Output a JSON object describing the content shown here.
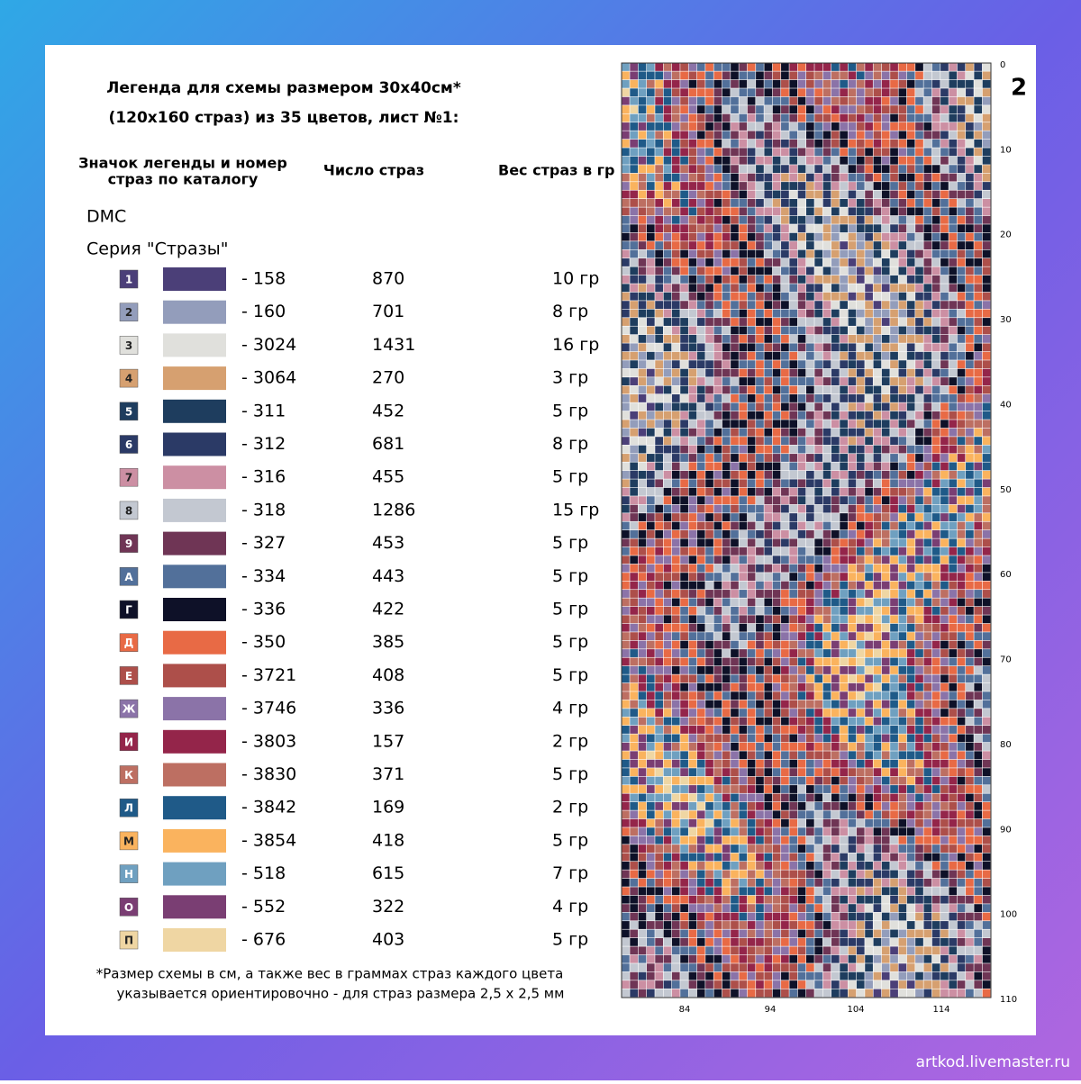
{
  "header": {
    "title": [
      "Легенда для схемы размером 30х40см*",
      "(120х160 страз) из 35 цветов, лист №1:"
    ],
    "page_number": "2"
  },
  "columns": [
    [
      "Значок легенды и номер",
      "страз по каталогу"
    ],
    "Число страз",
    "Вес страз в гр"
  ],
  "brand": "DMC",
  "series": "Серия \"Стразы\"",
  "rows": [
    {
      "symbol": "1",
      "color": "#4b3f78",
      "code": "- 158",
      "count": "870",
      "weight": "10 гр"
    },
    {
      "symbol": "2",
      "color": "#939dbb",
      "code": "- 160",
      "count": "701",
      "weight": "8 гр"
    },
    {
      "symbol": "3",
      "color": "#e0e0dc",
      "code": "- 3024",
      "count": "1431",
      "weight": "16 гр"
    },
    {
      "symbol": "4",
      "color": "#d6a070",
      "code": "- 3064",
      "count": "270",
      "weight": "3 гр"
    },
    {
      "symbol": "5",
      "color": "#1e3d5e",
      "code": "- 311",
      "count": "452",
      "weight": "5 гр"
    },
    {
      "symbol": "6",
      "color": "#2b3a66",
      "code": "- 312",
      "count": "681",
      "weight": "8 гр"
    },
    {
      "symbol": "7",
      "color": "#cc8fa3",
      "code": "- 316",
      "count": "455",
      "weight": "5 гр"
    },
    {
      "symbol": "8",
      "color": "#c3c8d1",
      "code": "- 318",
      "count": "1286",
      "weight": "15 гр"
    },
    {
      "symbol": "9",
      "color": "#6f3555",
      "code": "- 327",
      "count": "453",
      "weight": "5 гр"
    },
    {
      "symbol": "А",
      "color": "#52709a",
      "code": "- 334",
      "count": "443",
      "weight": "5 гр"
    },
    {
      "symbol": "Г",
      "color": "#0e1128",
      "code": "- 336",
      "count": "422",
      "weight": "5 гр"
    },
    {
      "symbol": "Д",
      "color": "#e86a45",
      "code": "- 350",
      "count": "385",
      "weight": "5 гр"
    },
    {
      "symbol": "Е",
      "color": "#ad4f4a",
      "code": "- 3721",
      "count": "408",
      "weight": "5 гр"
    },
    {
      "symbol": "Ж",
      "color": "#8b73a8",
      "code": "- 3746",
      "count": "336",
      "weight": "4 гр"
    },
    {
      "symbol": "И",
      "color": "#94254a",
      "code": "- 3803",
      "count": "157",
      "weight": "2 гр"
    },
    {
      "symbol": "К",
      "color": "#bd6f62",
      "code": "- 3830",
      "count": "371",
      "weight": "5 гр"
    },
    {
      "symbol": "Л",
      "color": "#1f5a88",
      "code": "- 3842",
      "count": "169",
      "weight": "2 гр"
    },
    {
      "symbol": "М",
      "color": "#fab35e",
      "code": "- 3854",
      "count": "418",
      "weight": "5 гр"
    },
    {
      "symbol": "Н",
      "color": "#6fa0c0",
      "code": "- 518",
      "count": "615",
      "weight": "7 гр"
    },
    {
      "symbol": "О",
      "color": "#7a3e73",
      "code": "- 552",
      "count": "322",
      "weight": "4 гр"
    },
    {
      "symbol": "П",
      "color": "#efd6a3",
      "code": "- 676",
      "count": "403",
      "weight": "5 гр"
    }
  ],
  "footnote": [
    "*Размер схемы в см, а также вес в граммах страз каждого цвета",
    "указывается ориентировочно - для страз размера 2,5 х 2,5 мм"
  ],
  "grid": {
    "yticks": [
      "0",
      "10",
      "20",
      "30",
      "40",
      "50",
      "60",
      "70",
      "80",
      "90",
      "100",
      "110"
    ],
    "xticks": [
      "84",
      "94",
      "104",
      "114"
    ]
  },
  "watermark": "artkod.livemaster.ru"
}
